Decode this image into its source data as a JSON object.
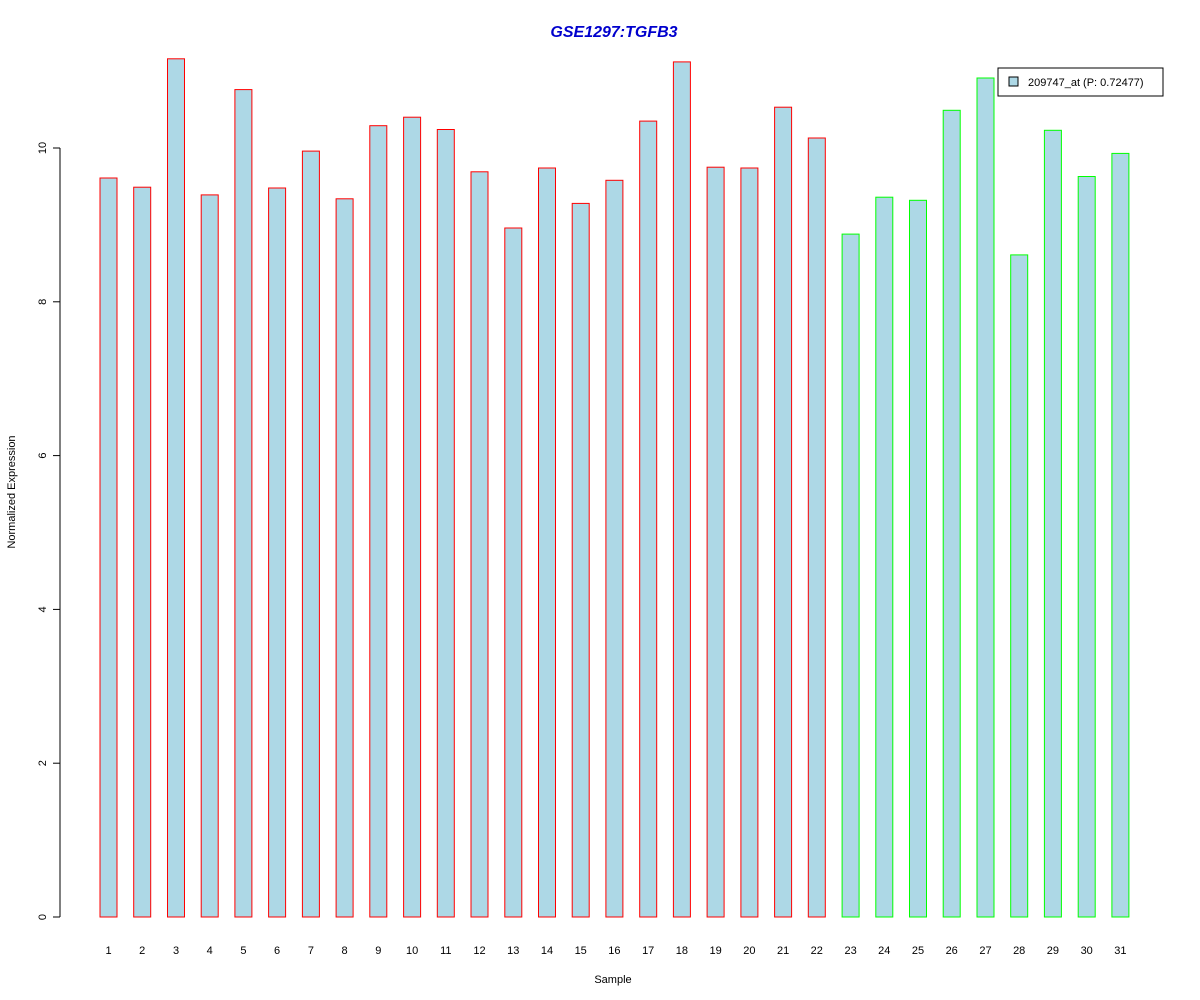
{
  "chart_data": {
    "type": "bar",
    "title": "GSE1297:TGFB3",
    "xlabel": "Sample",
    "ylabel": "Normalized Expression",
    "ylim": [
      0,
      11.3
    ],
    "yticks": [
      0,
      2,
      4,
      6,
      8,
      10
    ],
    "grid": false,
    "legend_position": "top-right",
    "categories": [
      "1",
      "2",
      "3",
      "4",
      "5",
      "6",
      "7",
      "8",
      "9",
      "10",
      "11",
      "12",
      "13",
      "14",
      "15",
      "16",
      "17",
      "18",
      "19",
      "20",
      "21",
      "22",
      "23",
      "24",
      "25",
      "26",
      "27",
      "28",
      "29",
      "30",
      "31"
    ],
    "series": [
      {
        "name": "209747_at (P: 0.72477)",
        "fill_color": "#add8e6",
        "values": [
          9.61,
          9.49,
          11.16,
          9.39,
          10.76,
          9.48,
          9.96,
          9.34,
          10.29,
          10.4,
          10.24,
          9.69,
          8.96,
          9.74,
          9.28,
          9.58,
          10.35,
          11.12,
          9.75,
          9.74,
          10.53,
          10.13,
          8.88,
          9.36,
          9.32,
          10.49,
          10.91,
          8.61,
          10.23,
          9.63,
          9.93
        ]
      }
    ],
    "border_colors": [
      "#ff0000",
      "#ff0000",
      "#ff0000",
      "#ff0000",
      "#ff0000",
      "#ff0000",
      "#ff0000",
      "#ff0000",
      "#ff0000",
      "#ff0000",
      "#ff0000",
      "#ff0000",
      "#ff0000",
      "#ff0000",
      "#ff0000",
      "#ff0000",
      "#ff0000",
      "#ff0000",
      "#ff0000",
      "#ff0000",
      "#ff0000",
      "#ff0000",
      "#00ff00",
      "#00ff00",
      "#00ff00",
      "#00ff00",
      "#00ff00",
      "#00ff00",
      "#00ff00",
      "#00ff00",
      "#00ff00"
    ],
    "title_color": "#0000cd"
  }
}
